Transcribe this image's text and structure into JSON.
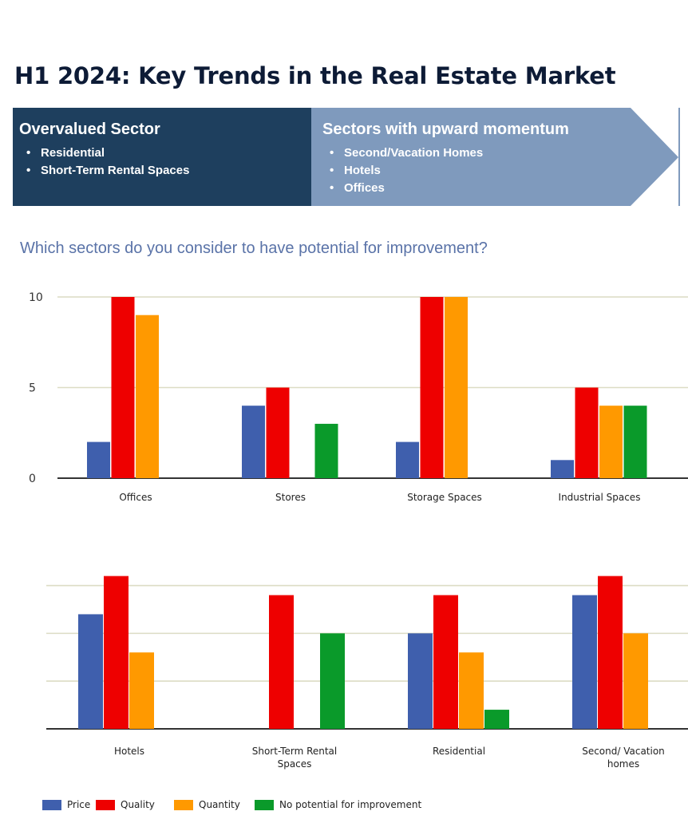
{
  "title": "H1 2024: Key Trends in the Real Estate Market",
  "banner": {
    "left": {
      "title": "Overvalued Sector",
      "items": [
        "Residential",
        "Short-Term Rental Spaces"
      ]
    },
    "right": {
      "title": "Sectors with upward momentum",
      "items": [
        "Second/Vacation Homes",
        "Hotels",
        "Offices"
      ]
    }
  },
  "colors": {
    "title": "#0d1b36",
    "banner_dark": "#1e3f5e",
    "banner_light": "#7f9abd",
    "question": "#5a73a8",
    "grid": "#dcdcc4"
  },
  "question": "Which sectors do you consider to have potential for improvement?",
  "legend": [
    {
      "name": "Price",
      "color": "#3f5fad"
    },
    {
      "name": "Quality",
      "color": "#ee0000"
    },
    {
      "name": "Quantity",
      "color": "#ff9900"
    },
    {
      "name": "No potential for improvement",
      "color": "#0a9a2a"
    }
  ],
  "chart_data": [
    {
      "type": "bar",
      "title": "",
      "categories": [
        "Offices",
        "Stores",
        "Storage Spaces",
        "Industrial Spaces"
      ],
      "series": [
        {
          "name": "Price",
          "values": [
            2,
            4,
            2,
            1
          ]
        },
        {
          "name": "Quality",
          "values": [
            10,
            5,
            10,
            5
          ]
        },
        {
          "name": "Quantity",
          "values": [
            9,
            0,
            10,
            4
          ]
        },
        {
          "name": "No potential for improvement",
          "values": [
            0,
            3,
            0,
            4
          ]
        }
      ],
      "ylim": [
        0,
        10
      ],
      "yticks": [
        0,
        5,
        10
      ],
      "ytick_labels": [
        "0",
        "5",
        "10"
      ],
      "grid": true
    },
    {
      "type": "bar",
      "title": "",
      "categories": [
        "Hotels",
        "Short-Term Rental Spaces",
        "Residential",
        "Second/ Vacation homes"
      ],
      "category_lines": [
        [
          "Hotels"
        ],
        [
          "Short-Term Rental",
          "Spaces"
        ],
        [
          "Residential"
        ],
        [
          "Second/ Vacation",
          "homes"
        ]
      ],
      "series": [
        {
          "name": "Price",
          "values": [
            6,
            0,
            5,
            7
          ]
        },
        {
          "name": "Quality",
          "values": [
            8,
            7,
            7,
            8
          ]
        },
        {
          "name": "Quantity",
          "values": [
            4,
            0,
            4,
            5
          ]
        },
        {
          "name": "No potential for improvement",
          "values": [
            0,
            5,
            1,
            0
          ]
        }
      ],
      "ylim": [
        0,
        8
      ],
      "yticks": [
        0,
        2.5,
        5,
        7.5
      ],
      "ytick_labels": [],
      "grid": true
    }
  ]
}
